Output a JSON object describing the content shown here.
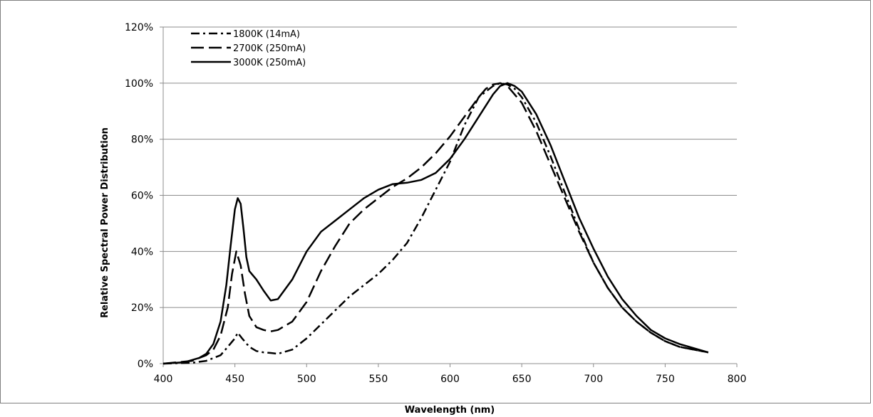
{
  "chart_data": {
    "type": "line",
    "xlabel": "Wavelength (nm)",
    "ylabel": "Relative Spectral Power Distribution",
    "xlim": [
      400,
      800
    ],
    "ylim": [
      0,
      120
    ],
    "x_ticks": [
      400,
      450,
      500,
      550,
      600,
      650,
      700,
      750,
      800
    ],
    "y_ticks": [
      0,
      20,
      40,
      60,
      80,
      100,
      120
    ],
    "y_tick_labels": [
      "0%",
      "20%",
      "40%",
      "60%",
      "80%",
      "100%",
      "120%"
    ],
    "grid": "horizontal",
    "legend_position": "top-left",
    "series": [
      {
        "name": "1800K (14mA)",
        "style": "dash-dot",
        "x": [
          400,
          420,
          430,
          440,
          445,
          450,
          452,
          455,
          460,
          465,
          470,
          475,
          480,
          490,
          500,
          510,
          520,
          530,
          540,
          550,
          560,
          570,
          580,
          590,
          600,
          610,
          620,
          630,
          635,
          640,
          645,
          650,
          660,
          670,
          680,
          690,
          700,
          710,
          720,
          730,
          740,
          750,
          760,
          770,
          780
        ],
        "y": [
          0,
          0.3,
          1,
          3,
          6,
          9,
          11,
          9,
          6,
          4.5,
          4,
          3.8,
          3.5,
          5,
          9,
          14,
          19,
          24,
          28,
          32,
          37,
          43,
          52,
          62,
          72,
          85,
          95,
          99,
          100,
          99.5,
          98,
          95,
          86,
          74,
          61,
          48,
          36,
          27,
          20,
          15,
          11,
          8,
          6,
          5,
          4
        ]
      },
      {
        "name": "2700K (250mA)",
        "style": "dash",
        "x": [
          400,
          420,
          430,
          435,
          440,
          445,
          448,
          451,
          454,
          457,
          460,
          465,
          470,
          475,
          480,
          490,
          500,
          510,
          520,
          530,
          540,
          550,
          560,
          570,
          580,
          590,
          600,
          610,
          620,
          625,
          630,
          635,
          640,
          650,
          660,
          670,
          680,
          690,
          700,
          710,
          720,
          730,
          740,
          750,
          760,
          770,
          780
        ],
        "y": [
          0,
          1,
          3,
          5,
          10,
          20,
          32,
          40,
          35,
          25,
          17,
          13,
          12,
          11.5,
          12,
          15,
          22,
          33,
          42,
          50,
          55,
          59,
          63,
          66,
          70,
          75,
          81,
          88,
          95,
          98,
          99.5,
          100,
          99,
          93,
          83,
          71,
          59,
          47,
          36,
          27,
          20,
          15,
          11,
          8,
          6,
          5,
          4
        ]
      },
      {
        "name": "3000K (250mA)",
        "style": "solid",
        "x": [
          400,
          415,
          425,
          430,
          435,
          440,
          444,
          447,
          450,
          452,
          454,
          456,
          458,
          460,
          465,
          470,
          475,
          480,
          490,
          500,
          510,
          520,
          530,
          540,
          550,
          560,
          570,
          580,
          590,
          600,
          610,
          620,
          630,
          635,
          640,
          645,
          650,
          660,
          670,
          680,
          690,
          700,
          710,
          720,
          730,
          740,
          750,
          760,
          770,
          780
        ],
        "y": [
          0,
          0.5,
          2,
          3.5,
          7,
          15,
          28,
          42,
          55,
          59,
          57,
          48,
          38,
          33,
          30,
          26,
          22.5,
          23,
          30,
          40,
          47,
          51,
          55,
          59,
          62,
          64,
          64.5,
          65.5,
          68,
          73,
          80,
          88,
          96,
          99,
          100,
          99,
          97,
          89,
          78,
          65,
          52,
          41,
          31,
          23,
          17,
          12,
          9,
          7,
          5.5,
          4
        ]
      }
    ]
  }
}
